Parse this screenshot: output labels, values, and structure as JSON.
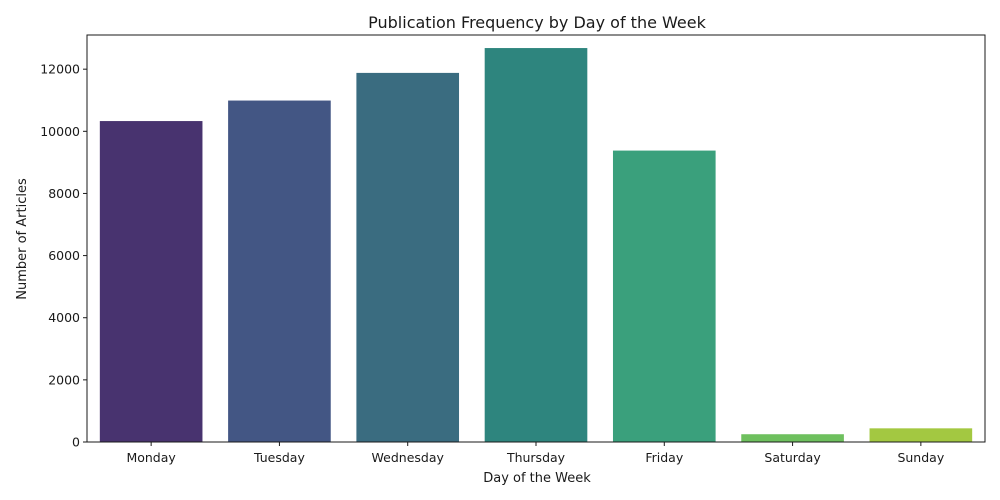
{
  "chart_data": {
    "type": "bar",
    "title": "Publication Frequency by Day of the Week",
    "xlabel": "Day of the Week",
    "ylabel": "Number of Articles",
    "categories": [
      "Monday",
      "Tuesday",
      "Wednesday",
      "Thursday",
      "Friday",
      "Saturday",
      "Sunday"
    ],
    "values": [
      10330,
      10990,
      11880,
      12680,
      9380,
      250,
      440
    ],
    "ylim": [
      0,
      13100
    ],
    "yticks": [
      0,
      2000,
      4000,
      6000,
      8000,
      10000,
      12000
    ],
    "colors": [
      "#48336f",
      "#435684",
      "#3a6c80",
      "#2e857e",
      "#3aa07c",
      "#6ec05e",
      "#a3c841"
    ],
    "grid": false,
    "legend": "none"
  }
}
